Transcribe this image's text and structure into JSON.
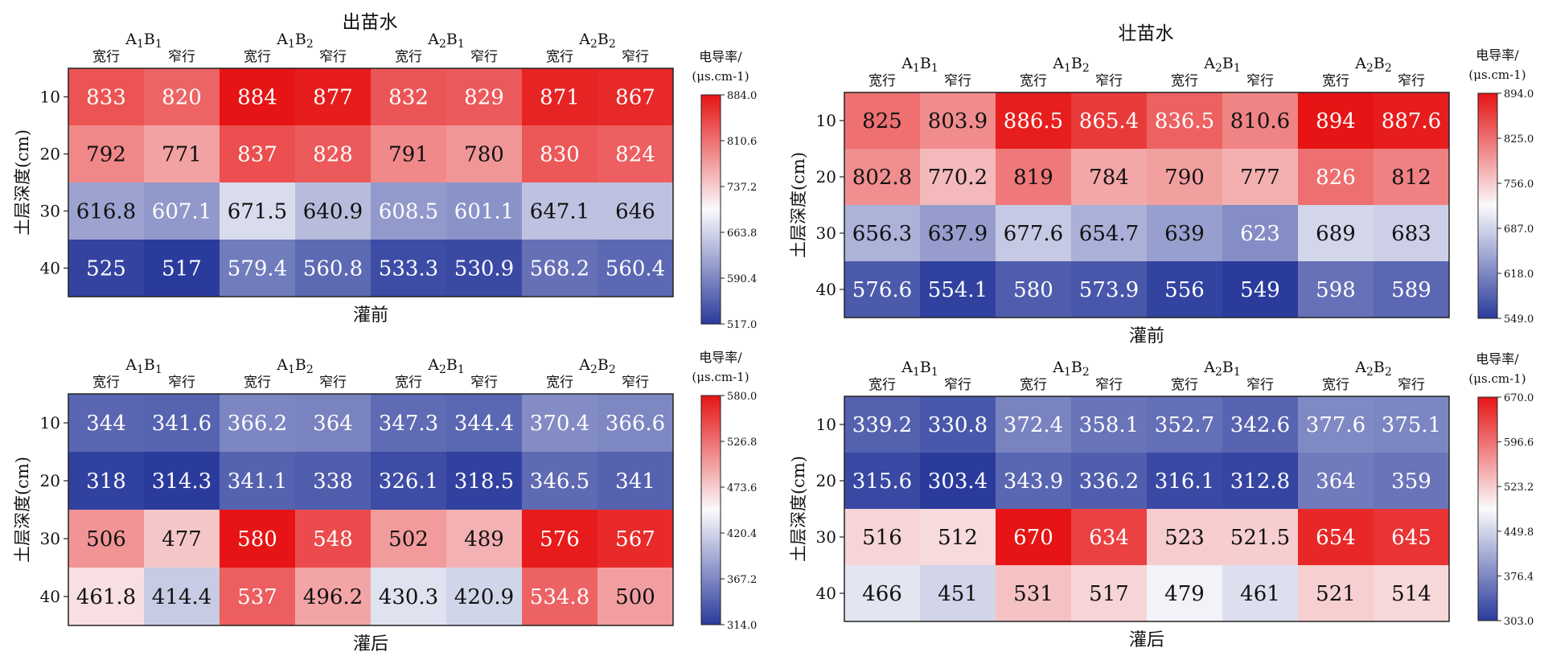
{
  "titles": [
    "出苗水",
    "壮苗水"
  ],
  "chart_data": [
    {
      "type": "heatmap",
      "group": "出苗水",
      "xlabel": "灌前",
      "ylabel": "土层深度(cm)",
      "treatments": [
        "A1B1",
        "A1B2",
        "A2B1",
        "A2B2"
      ],
      "columns": [
        "宽行",
        "窄行",
        "宽行",
        "窄行",
        "宽行",
        "窄行",
        "宽行",
        "窄行"
      ],
      "rows": [
        "10",
        "20",
        "30",
        "40"
      ],
      "values": [
        [
          833,
          820,
          884,
          877,
          832,
          829,
          871,
          867
        ],
        [
          792,
          771,
          837,
          828,
          791,
          780,
          830,
          824
        ],
        [
          616.8,
          607.1,
          671.5,
          640.9,
          608.5,
          601.1,
          647.1,
          646
        ],
        [
          525,
          517,
          579.4,
          560.8,
          533.3,
          530.9,
          568.2,
          560.4
        ]
      ],
      "colorbar": {
        "title": "电导率/",
        "unit": "(μs.cm-1)",
        "ticks": [
          "884.0",
          "810.6",
          "737.2",
          "663.8",
          "590.4",
          "517.0"
        ],
        "range": [
          517.0,
          884.0
        ]
      }
    },
    {
      "type": "heatmap",
      "group": "壮苗水",
      "xlabel": "灌前",
      "ylabel": "土层深度(cm)",
      "treatments": [
        "A1B1",
        "A1B2",
        "A2B1",
        "A2B2"
      ],
      "columns": [
        "宽行",
        "窄行",
        "宽行",
        "窄行",
        "宽行",
        "窄行",
        "宽行",
        "窄行"
      ],
      "rows": [
        "10",
        "20",
        "30",
        "40"
      ],
      "values": [
        [
          825,
          803.9,
          886.5,
          865.4,
          836.5,
          810.6,
          894,
          887.6
        ],
        [
          802.8,
          770.2,
          819,
          784,
          790,
          777,
          826,
          812
        ],
        [
          656.3,
          637.9,
          677.6,
          654.7,
          639,
          623,
          689,
          683
        ],
        [
          576.6,
          554.1,
          580,
          573.9,
          556,
          549,
          598,
          589
        ]
      ],
      "colorbar": {
        "title": "电导率/",
        "unit": "(μs.cm-1)",
        "ticks": [
          "894.0",
          "825.0",
          "756.0",
          "687.0",
          "618.0",
          "549.0"
        ],
        "range": [
          549.0,
          894.0
        ]
      }
    },
    {
      "type": "heatmap",
      "group": "出苗水",
      "xlabel": "灌后",
      "ylabel": "土层深度(cm)",
      "treatments": [
        "A1B1",
        "A1B2",
        "A2B1",
        "A2B2"
      ],
      "columns": [
        "宽行",
        "窄行",
        "宽行",
        "窄行",
        "宽行",
        "窄行",
        "宽行",
        "窄行"
      ],
      "rows": [
        "10",
        "20",
        "30",
        "40"
      ],
      "values": [
        [
          344,
          341.6,
          366.2,
          364,
          347.3,
          344.4,
          370.4,
          366.6
        ],
        [
          318,
          314.3,
          341.1,
          338,
          326.1,
          318.5,
          346.5,
          341
        ],
        [
          506,
          477,
          580,
          548,
          502,
          489,
          576,
          567
        ],
        [
          461.8,
          414.4,
          537,
          496.2,
          430.3,
          420.9,
          534.8,
          500
        ]
      ],
      "colorbar": {
        "title": "电导率/",
        "unit": "(μs.cm-1)",
        "ticks": [
          "580.0",
          "526.8",
          "473.6",
          "420.4",
          "367.2",
          "314.0"
        ],
        "range": [
          314.0,
          580.0
        ]
      }
    },
    {
      "type": "heatmap",
      "group": "壮苗水",
      "xlabel": "灌后",
      "ylabel": "土层深度(cm)",
      "treatments": [
        "A1B1",
        "A1B2",
        "A2B1",
        "A2B2"
      ],
      "columns": [
        "宽行",
        "窄行",
        "宽行",
        "窄行",
        "宽行",
        "窄行",
        "宽行",
        "窄行"
      ],
      "rows": [
        "10",
        "20",
        "30",
        "40"
      ],
      "values": [
        [
          339.2,
          330.8,
          372.4,
          358.1,
          352.7,
          342.6,
          377.6,
          375.1
        ],
        [
          315.6,
          303.4,
          343.9,
          336.2,
          316.1,
          312.8,
          364,
          359
        ],
        [
          516,
          512,
          670,
          634,
          523,
          521.5,
          654,
          645
        ],
        [
          466,
          451,
          531,
          517,
          479,
          461,
          521,
          514
        ]
      ],
      "colorbar": {
        "title": "电导率/",
        "unit": "(μs.cm-1)",
        "ticks": [
          "670.0",
          "596.6",
          "523.2",
          "449.8",
          "376.4",
          "303.0"
        ],
        "range": [
          303.0,
          670.0
        ]
      }
    }
  ]
}
